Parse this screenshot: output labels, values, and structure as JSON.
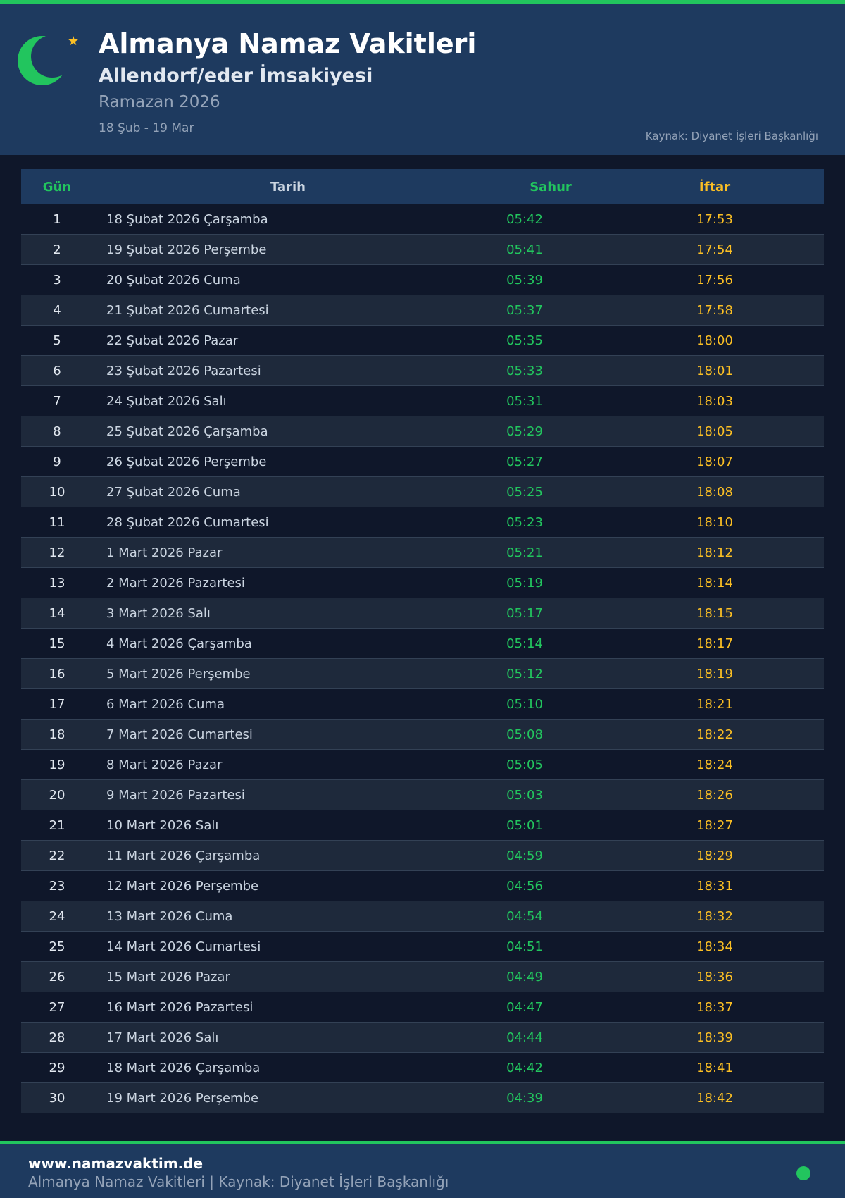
{
  "header": {
    "title": "Almanya Namaz Vakitleri",
    "subtitle": "Allendorf/eder İmsakiyesi",
    "ramazan": "Ramazan 2026",
    "range": "18 Şub - 19 Mar",
    "source": "Kaynak: Diyanet İşleri Başkanlığı",
    "icon": "crescent-star-icon"
  },
  "colors": {
    "accent": "#22c55e",
    "iftar": "#fbbf24",
    "header_bg": "#1e3a5f",
    "bg": "#0f172a"
  },
  "table": {
    "columns": [
      "Gün",
      "Tarih",
      "Sahur",
      "İftar"
    ],
    "rows": [
      [
        "1",
        "18 Şubat 2026 Çarşamba",
        "05:42",
        "17:53"
      ],
      [
        "2",
        "19 Şubat 2026 Perşembe",
        "05:41",
        "17:54"
      ],
      [
        "3",
        "20 Şubat 2026 Cuma",
        "05:39",
        "17:56"
      ],
      [
        "4",
        "21 Şubat 2026 Cumartesi",
        "05:37",
        "17:58"
      ],
      [
        "5",
        "22 Şubat 2026 Pazar",
        "05:35",
        "18:00"
      ],
      [
        "6",
        "23 Şubat 2026 Pazartesi",
        "05:33",
        "18:01"
      ],
      [
        "7",
        "24 Şubat 2026 Salı",
        "05:31",
        "18:03"
      ],
      [
        "8",
        "25 Şubat 2026 Çarşamba",
        "05:29",
        "18:05"
      ],
      [
        "9",
        "26 Şubat 2026 Perşembe",
        "05:27",
        "18:07"
      ],
      [
        "10",
        "27 Şubat 2026 Cuma",
        "05:25",
        "18:08"
      ],
      [
        "11",
        "28 Şubat 2026 Cumartesi",
        "05:23",
        "18:10"
      ],
      [
        "12",
        "1 Mart 2026 Pazar",
        "05:21",
        "18:12"
      ],
      [
        "13",
        "2 Mart 2026 Pazartesi",
        "05:19",
        "18:14"
      ],
      [
        "14",
        "3 Mart 2026 Salı",
        "05:17",
        "18:15"
      ],
      [
        "15",
        "4 Mart 2026 Çarşamba",
        "05:14",
        "18:17"
      ],
      [
        "16",
        "5 Mart 2026 Perşembe",
        "05:12",
        "18:19"
      ],
      [
        "17",
        "6 Mart 2026 Cuma",
        "05:10",
        "18:21"
      ],
      [
        "18",
        "7 Mart 2026 Cumartesi",
        "05:08",
        "18:22"
      ],
      [
        "19",
        "8 Mart 2026 Pazar",
        "05:05",
        "18:24"
      ],
      [
        "20",
        "9 Mart 2026 Pazartesi",
        "05:03",
        "18:26"
      ],
      [
        "21",
        "10 Mart 2026 Salı",
        "05:01",
        "18:27"
      ],
      [
        "22",
        "11 Mart 2026 Çarşamba",
        "04:59",
        "18:29"
      ],
      [
        "23",
        "12 Mart 2026 Perşembe",
        "04:56",
        "18:31"
      ],
      [
        "24",
        "13 Mart 2026 Cuma",
        "04:54",
        "18:32"
      ],
      [
        "25",
        "14 Mart 2026 Cumartesi",
        "04:51",
        "18:34"
      ],
      [
        "26",
        "15 Mart 2026 Pazar",
        "04:49",
        "18:36"
      ],
      [
        "27",
        "16 Mart 2026 Pazartesi",
        "04:47",
        "18:37"
      ],
      [
        "28",
        "17 Mart 2026 Salı",
        "04:44",
        "18:39"
      ],
      [
        "29",
        "18 Mart 2026 Çarşamba",
        "04:42",
        "18:41"
      ],
      [
        "30",
        "19 Mart 2026 Perşembe",
        "04:39",
        "18:42"
      ]
    ]
  },
  "footer": {
    "site": "www.namazvaktim.de",
    "text": "Almanya Namaz Vakitleri | Kaynak: Diyanet İşleri Başkanlığı"
  }
}
